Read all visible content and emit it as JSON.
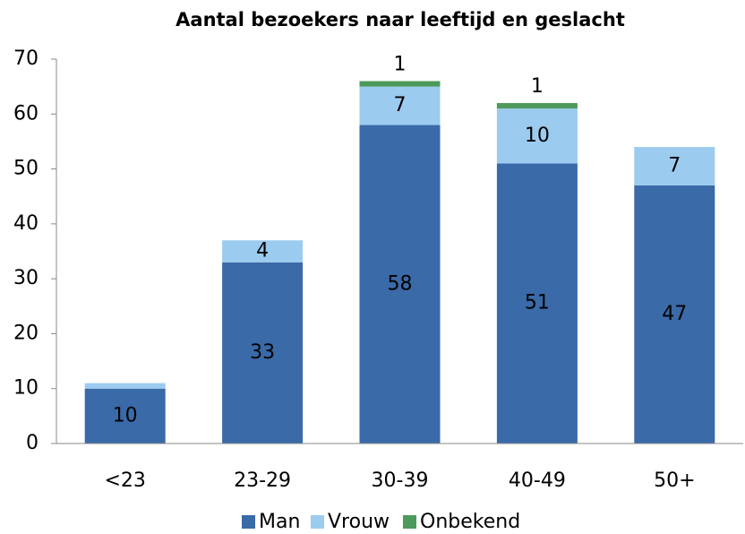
{
  "chart_data": {
    "type": "stacked_bar",
    "title": "Aantal bezoekers naar leeftijd en geslacht",
    "categories": [
      "<23",
      "23-29",
      "30-39",
      "40-49",
      "50+"
    ],
    "series": [
      {
        "name": "Man",
        "color": "#3a6aa8",
        "values": [
          10,
          33,
          58,
          51,
          47
        ],
        "value_labels": [
          "10",
          "33",
          "58",
          "51",
          "47"
        ]
      },
      {
        "name": "Vrouw",
        "color": "#9ccbf0",
        "values": [
          1,
          4,
          7,
          10,
          7
        ],
        "value_labels": [
          null,
          "4",
          "7",
          "10",
          "7"
        ]
      },
      {
        "name": "Onbekend",
        "color": "#4e9a5c",
        "values": [
          0,
          0,
          1,
          1,
          0
        ],
        "value_labels": [
          null,
          null,
          "1",
          "1",
          null
        ]
      }
    ],
    "ylim": [
      0,
      70
    ],
    "yticks": [
      0,
      10,
      20,
      30,
      40,
      50,
      60,
      70
    ],
    "grid": false,
    "legend": "bottom"
  }
}
